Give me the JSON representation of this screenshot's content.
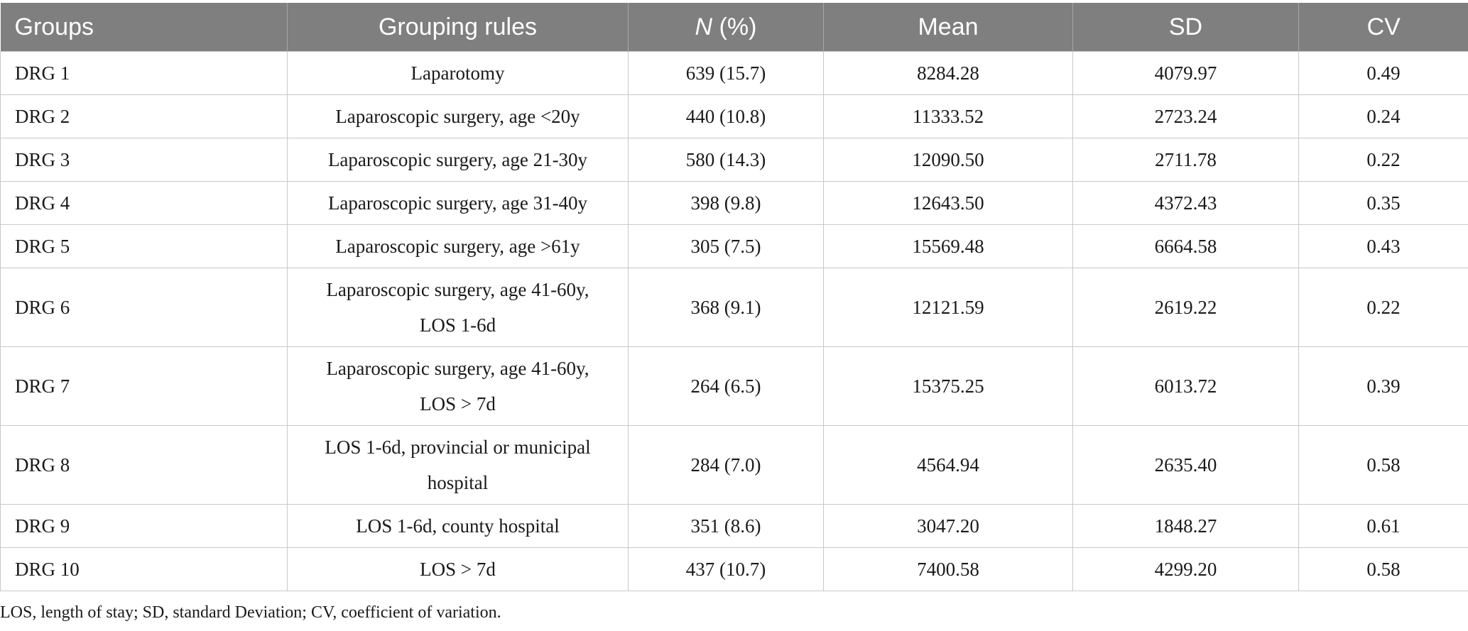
{
  "table": {
    "headers": {
      "groups": "Groups",
      "rules": "Grouping rules",
      "n_italic": "N",
      "n_rest": " (%)",
      "mean": "Mean",
      "sd": "SD",
      "cv": "CV"
    },
    "rows": [
      {
        "group": "DRG 1",
        "rule": "Laparotomy",
        "n": "639 (15.7)",
        "mean": "8284.28",
        "sd": "4079.97",
        "cv": "0.49"
      },
      {
        "group": "DRG 2",
        "rule": "Laparoscopic surgery, age <20y",
        "n": "440 (10.8)",
        "mean": "11333.52",
        "sd": "2723.24",
        "cv": "0.24"
      },
      {
        "group": "DRG 3",
        "rule": "Laparoscopic surgery, age 21-30y",
        "n": "580 (14.3)",
        "mean": "12090.50",
        "sd": "2711.78",
        "cv": "0.22"
      },
      {
        "group": "DRG 4",
        "rule": "Laparoscopic surgery, age 31-40y",
        "n": "398 (9.8)",
        "mean": "12643.50",
        "sd": "4372.43",
        "cv": "0.35"
      },
      {
        "group": "DRG 5",
        "rule": "Laparoscopic surgery, age >61y",
        "n": "305 (7.5)",
        "mean": "15569.48",
        "sd": "6664.58",
        "cv": "0.43"
      },
      {
        "group": "DRG 6",
        "rule_line1": "Laparoscopic surgery, age 41-60y,",
        "rule_line2": "LOS 1-6d",
        "n": "368 (9.1)",
        "mean": "12121.59",
        "sd": "2619.22",
        "cv": "0.22"
      },
      {
        "group": "DRG 7",
        "rule_line1": "Laparoscopic surgery, age 41-60y,",
        "rule_line2": "LOS > 7d",
        "n": "264 (6.5)",
        "mean": "15375.25",
        "sd": "6013.72",
        "cv": "0.39"
      },
      {
        "group": "DRG 8",
        "rule_line1": "LOS 1-6d, provincial or municipal",
        "rule_line2": "hospital",
        "n": "284 (7.0)",
        "mean": "4564.94",
        "sd": "2635.40",
        "cv": "0.58"
      },
      {
        "group": "DRG 9",
        "rule": "LOS 1-6d, county hospital",
        "n": "351 (8.6)",
        "mean": "3047.20",
        "sd": "1848.27",
        "cv": "0.61"
      },
      {
        "group": "DRG 10",
        "rule": "LOS > 7d",
        "n": "437 (10.7)",
        "mean": "7400.58",
        "sd": "4299.20",
        "cv": "0.58"
      }
    ]
  },
  "footnote": "LOS, length of stay; SD, standard Deviation; CV, coefficient of variation."
}
